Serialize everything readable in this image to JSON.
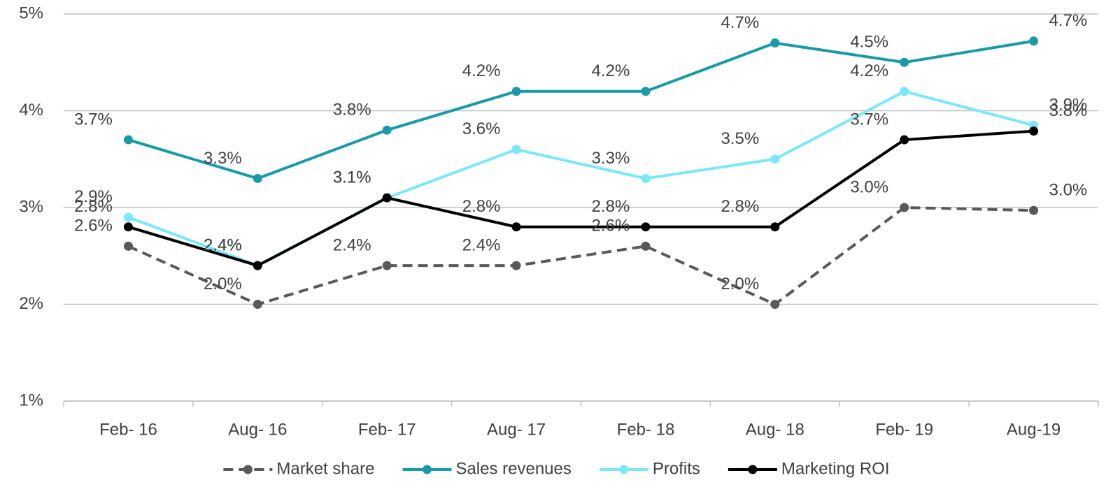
{
  "chart_data": {
    "type": "line",
    "categories": [
      "Feb- 16",
      "Aug- 16",
      "Feb- 17",
      "Aug- 17",
      "Feb- 18",
      "Aug- 18",
      "Feb- 19",
      "Aug-19"
    ],
    "series": [
      {
        "name": "Market share",
        "color": "#595959",
        "dashed": true,
        "values": [
          2.6,
          2.0,
          2.4,
          2.4,
          2.6,
          2.0,
          3.0,
          2.97
        ],
        "value_labels": [
          "2.6%",
          "2.0%",
          "2.4%",
          "2.4%",
          "2.6%",
          "2.0%",
          "3.0%",
          "3.0%"
        ]
      },
      {
        "name": "Sales revenues",
        "color": "#1a9aa8",
        "values": [
          3.7,
          3.3,
          3.8,
          4.2,
          4.2,
          4.7,
          4.5,
          4.72
        ],
        "value_labels": [
          "3.7%",
          "3.3%",
          "3.8%",
          "4.2%",
          "4.2%",
          "4.7%",
          "4.5%",
          "4.7%"
        ]
      },
      {
        "name": "Profits",
        "color": "#7ae8f8",
        "values": [
          2.9,
          2.4,
          3.1,
          3.6,
          3.3,
          3.5,
          4.2,
          3.85
        ],
        "value_labels": [
          "2.9%",
          "2.4%",
          "3.1%",
          "3.6%",
          "3.3%",
          "3.5%",
          "4.2%",
          "3.9%"
        ]
      },
      {
        "name": "Marketing ROI",
        "color": "#000000",
        "values": [
          2.8,
          2.4,
          3.1,
          2.8,
          2.8,
          2.8,
          3.7,
          3.79
        ],
        "value_labels": [
          "2.8%",
          "2.4%",
          "3.1%",
          "2.8%",
          "2.8%",
          "2.8%",
          "3.7%",
          "3.8%"
        ]
      }
    ],
    "ylim": [
      1,
      5
    ],
    "yticks": [
      {
        "value": 1,
        "label": "1%"
      },
      {
        "value": 2,
        "label": "2%"
      },
      {
        "value": 3,
        "label": "3%"
      },
      {
        "value": 4,
        "label": "4%"
      },
      {
        "value": 5,
        "label": "5%"
      }
    ],
    "grid": true,
    "legend": "bottom"
  }
}
